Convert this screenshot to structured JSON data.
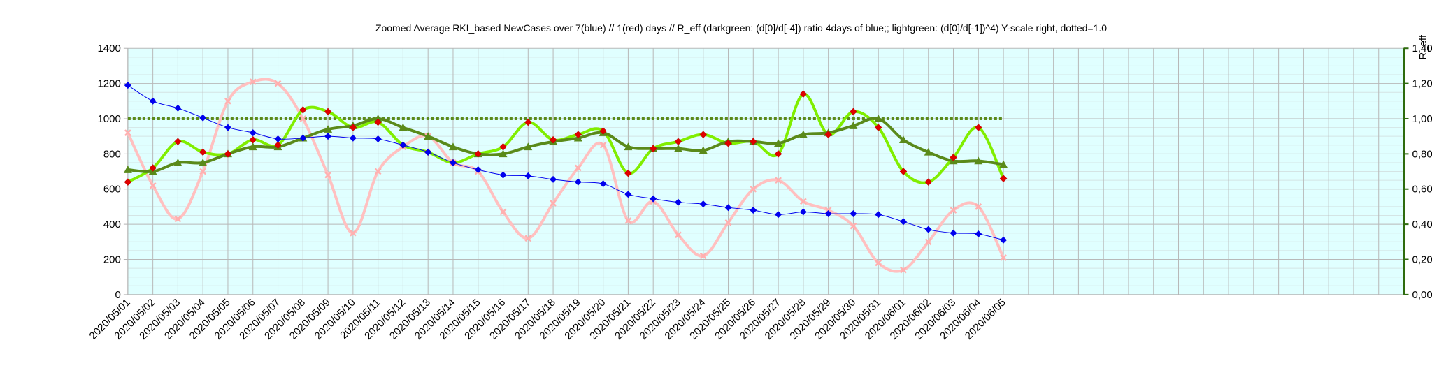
{
  "chart_data": {
    "type": "line",
    "title": "Zoomed Average RKI_based NewCases over 7(blue) // 1(red) days //  R_eff (darkgreen: (d[0]/d[-4]) ratio 4days of blue;; lightgreen: (d[0]/d[-1])^4) Y-scale right, dotted=1.0",
    "y2label": "R_eff",
    "ylim": [
      0,
      1400
    ],
    "y2lim": [
      0,
      1.4
    ],
    "yticks": [
      "0",
      "200",
      "400",
      "600",
      "800",
      "1000",
      "1200",
      "1400"
    ],
    "y2ticks": [
      "0,00",
      "0,20",
      "0,40",
      "0,60",
      "0,80",
      "1,00",
      "1,20",
      "1,40"
    ],
    "grid": true,
    "categories": [
      "2020/05/01",
      "2020/05/02",
      "2020/05/03",
      "2020/05/04",
      "2020/05/05",
      "2020/05/06",
      "2020/05/07",
      "2020/05/08",
      "2020/05/09",
      "2020/05/10",
      "2020/05/11",
      "2020/05/12",
      "2020/05/13",
      "2020/05/14",
      "2020/05/15",
      "2020/05/16",
      "2020/05/17",
      "2020/05/18",
      "2020/05/19",
      "2020/05/20",
      "2020/05/21",
      "2020/05/22",
      "2020/05/23",
      "2020/05/24",
      "2020/05/25",
      "2020/05/26",
      "2020/05/27",
      "2020/05/28",
      "2020/05/29",
      "2020/05/30",
      "2020/05/31",
      "2020/06/01",
      "2020/06/02",
      "2020/06/03",
      "2020/06/04",
      "2020/06/05"
    ],
    "extra_slots": 15,
    "series": [
      {
        "key": "red",
        "axis": "left",
        "color": "#ffc0c0",
        "marker": "x",
        "values": [
          920,
          620,
          430,
          700,
          1100,
          1210,
          1200,
          1000,
          680,
          350,
          700,
          840,
          900,
          750,
          700,
          470,
          320,
          520,
          720,
          850,
          420,
          530,
          340,
          220,
          410,
          600,
          650,
          530,
          480,
          390,
          180,
          140,
          300,
          480,
          500,
          210
        ]
      },
      {
        "key": "blue",
        "axis": "left",
        "color": "#0000ee",
        "marker": "diamond",
        "values": [
          1190,
          1100,
          1060,
          1005,
          950,
          920,
          885,
          890,
          900,
          890,
          885,
          850,
          810,
          750,
          710,
          680,
          675,
          655,
          640,
          630,
          570,
          545,
          525,
          515,
          495,
          480,
          455,
          470,
          460,
          460,
          455,
          415,
          370,
          350,
          345,
          310
        ]
      },
      {
        "key": "lightgreen",
        "axis": "right",
        "color": "#80ee00",
        "marker": "diamond-red",
        "values": [
          0.64,
          0.72,
          0.87,
          0.81,
          0.8,
          0.88,
          0.85,
          1.05,
          1.04,
          0.95,
          0.98,
          0.85,
          0.81,
          0.75,
          0.8,
          0.84,
          0.98,
          0.88,
          0.91,
          0.93,
          0.69,
          0.83,
          0.87,
          0.91,
          0.86,
          0.87,
          0.8,
          1.14,
          0.91,
          1.04,
          0.95,
          0.7,
          0.64,
          0.78,
          0.95,
          0.66
        ]
      },
      {
        "key": "darkgreen",
        "axis": "right",
        "color": "#5a8a1a",
        "marker": "triangle",
        "values": [
          0.71,
          0.7,
          0.75,
          0.75,
          0.8,
          0.84,
          0.84,
          0.89,
          0.94,
          0.96,
          1.0,
          0.95,
          0.9,
          0.84,
          0.8,
          0.8,
          0.84,
          0.87,
          0.89,
          0.92,
          0.84,
          0.83,
          0.83,
          0.82,
          0.87,
          0.87,
          0.86,
          0.91,
          0.92,
          0.96,
          1.0,
          0.88,
          0.81,
          0.76,
          0.76,
          0.74
        ]
      }
    ],
    "reference_line": {
      "value": 1.0,
      "axis": "right",
      "color": "#5a8a1a",
      "style": "dotted"
    }
  }
}
